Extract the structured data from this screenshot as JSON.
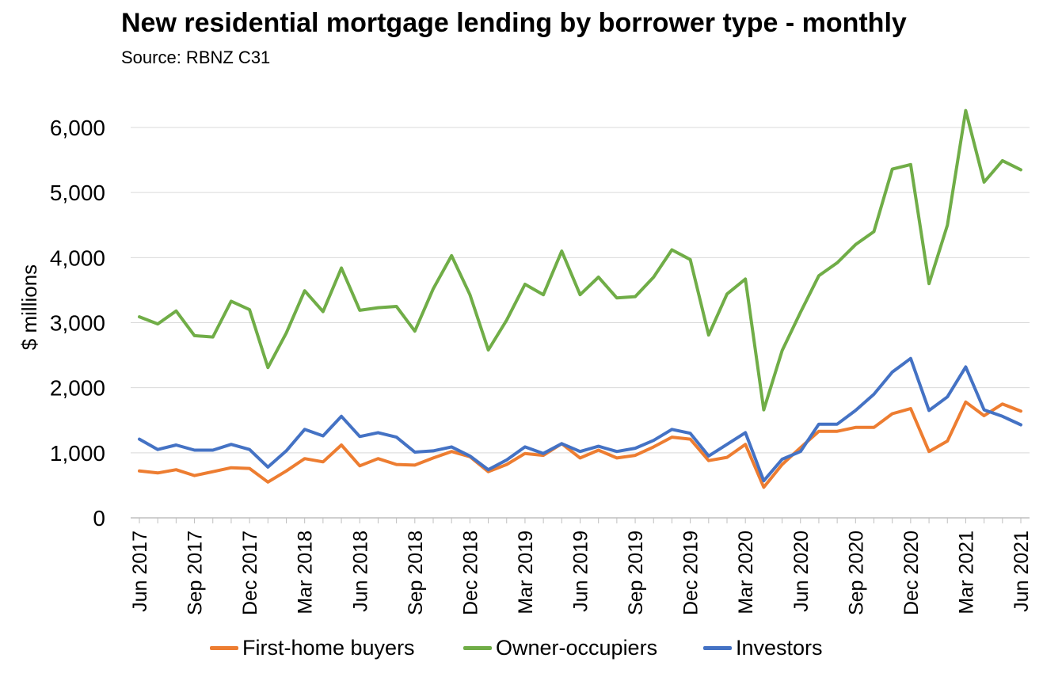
{
  "title": "New residential mortgage lending by borrower type - monthly",
  "subtitle": "Source: RBNZ C31",
  "chart_data": {
    "type": "line",
    "title": "New residential mortgage lending by borrower type - monthly",
    "subtitle": "Source: RBNZ C31",
    "xlabel": "",
    "ylabel": "$ millions",
    "ylim": [
      0,
      6000
    ],
    "yticks": [
      "0",
      "1,000",
      "2,000",
      "3,000",
      "4,000",
      "5,000",
      "6,000"
    ],
    "x": [
      "Jun 2017",
      "Jul 2017",
      "Aug 2017",
      "Sep 2017",
      "Oct 2017",
      "Nov 2017",
      "Dec 2017",
      "Jan 2018",
      "Feb 2018",
      "Mar 2018",
      "Apr 2018",
      "May 2018",
      "Jun 2018",
      "Jul 2018",
      "Aug 2018",
      "Sep 2018",
      "Oct 2018",
      "Nov 2018",
      "Dec 2018",
      "Jan 2019",
      "Feb 2019",
      "Mar 2019",
      "Apr 2019",
      "May 2019",
      "Jun 2019",
      "Jul 2019",
      "Aug 2019",
      "Sep 2019",
      "Oct 2019",
      "Nov 2019",
      "Dec 2019",
      "Jan 2020",
      "Feb 2020",
      "Mar 2020",
      "Apr 2020",
      "May 2020",
      "Jun 2020",
      "Jul 2020",
      "Aug 2020",
      "Sep 2020",
      "Oct 2020",
      "Nov 2020",
      "Dec 2020",
      "Jan 2021",
      "Feb 2021",
      "Mar 2021",
      "Apr 2021",
      "May 2021",
      "Jun 2021"
    ],
    "xtick_labels": [
      "Jun 2017",
      "Sep 2017",
      "Dec 2017",
      "Mar 2018",
      "Jun 2018",
      "Sep 2018",
      "Dec 2018",
      "Mar 2019",
      "Jun 2019",
      "Sep 2019",
      "Dec 2019",
      "Mar 2020",
      "Jun 2020",
      "Sep 2020",
      "Dec 2020",
      "Mar 2021",
      "Jun 2021"
    ],
    "grid": true,
    "legend_position": "bottom",
    "series": [
      {
        "name": "First-home buyers",
        "color": "#ED7D31",
        "values": [
          720,
          690,
          740,
          650,
          710,
          770,
          760,
          550,
          720,
          910,
          860,
          1120,
          800,
          910,
          820,
          810,
          920,
          1020,
          940,
          710,
          820,
          990,
          960,
          1140,
          920,
          1040,
          920,
          960,
          1090,
          1240,
          1210,
          880,
          930,
          1130,
          470,
          820,
          1080,
          1330,
          1330,
          1390,
          1390,
          1600,
          1680,
          1020,
          1180,
          1780,
          1570,
          1750,
          1640
        ]
      },
      {
        "name": "Owner-occupiers",
        "color": "#70AD47",
        "values": [
          3090,
          2980,
          3180,
          2800,
          2780,
          3330,
          3200,
          2310,
          2840,
          3490,
          3170,
          3840,
          3190,
          3230,
          3250,
          2870,
          3520,
          4030,
          3430,
          2580,
          3040,
          3590,
          3430,
          4100,
          3430,
          3700,
          3380,
          3400,
          3700,
          4120,
          3970,
          2810,
          3440,
          3670,
          1660,
          2570,
          3160,
          3720,
          3920,
          4200,
          4400,
          5360,
          5430,
          3600,
          4500,
          6260,
          5160,
          5490,
          5350
        ]
      },
      {
        "name": "Investors",
        "color": "#4472C4",
        "values": [
          1210,
          1050,
          1120,
          1040,
          1040,
          1130,
          1050,
          780,
          1030,
          1360,
          1260,
          1560,
          1250,
          1310,
          1240,
          1010,
          1030,
          1090,
          950,
          740,
          890,
          1090,
          990,
          1140,
          1020,
          1100,
          1020,
          1070,
          1190,
          1360,
          1300,
          950,
          1130,
          1310,
          570,
          900,
          1020,
          1440,
          1440,
          1650,
          1900,
          2240,
          2450,
          1650,
          1860,
          2320,
          1660,
          1560,
          1430
        ]
      }
    ]
  }
}
